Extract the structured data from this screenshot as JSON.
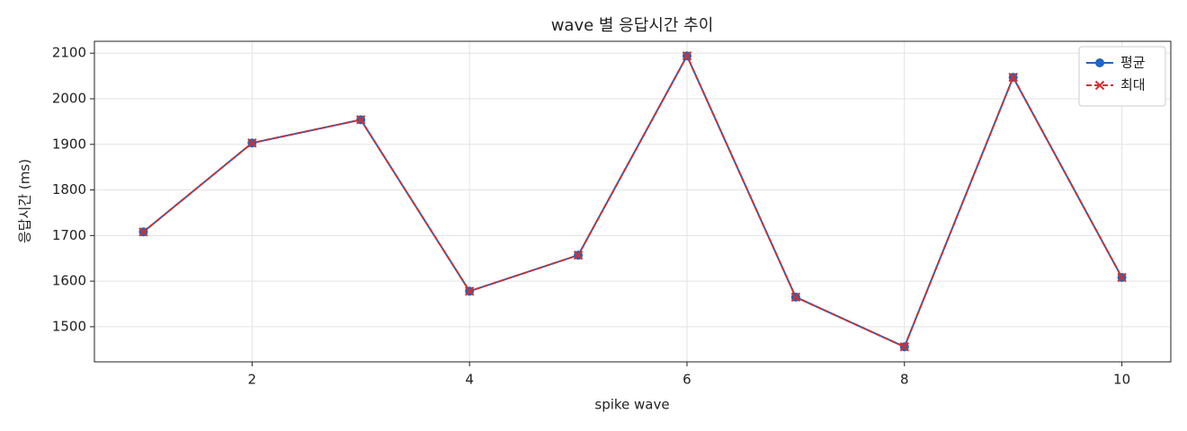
{
  "chart_data": {
    "type": "line",
    "title": "wave 별 응답시간 추이",
    "x_label": "spike wave",
    "y_label": "응답시간 (ms)",
    "x": [
      1,
      2,
      3,
      4,
      5,
      6,
      7,
      8,
      9,
      10
    ],
    "series": [
      {
        "name": "평균",
        "color": "#1f66c0",
        "marker": "circle",
        "dashed": false,
        "values": [
          1708,
          1903,
          1954,
          1578,
          1657,
          2094,
          1565,
          1456,
          2047,
          1608
        ]
      },
      {
        "name": "최대",
        "color": "#d1302f",
        "marker": "x",
        "dashed": true,
        "values": [
          1708,
          1903,
          1954,
          1578,
          1657,
          2094,
          1565,
          1456,
          2047,
          1608
        ]
      }
    ],
    "xlim": [
      0.55,
      10.45
    ],
    "ylim": [
      1423,
      2126
    ],
    "xticks": [
      2,
      4,
      6,
      8,
      10
    ],
    "yticks": [
      1500,
      1600,
      1700,
      1800,
      1900,
      2000,
      2100
    ],
    "grid": true,
    "legend": "upper right"
  }
}
